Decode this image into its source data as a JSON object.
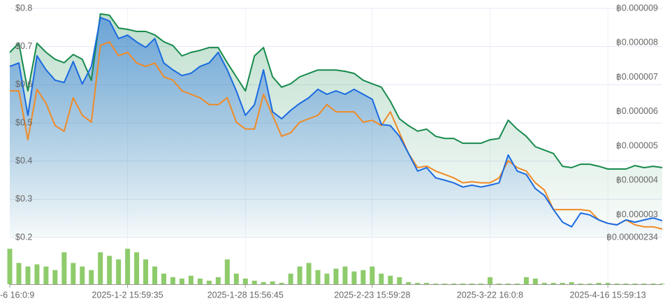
{
  "chart_data": {
    "type": "line",
    "categories": [
      "-6 16:0:9",
      null,
      null,
      null,
      null,
      null,
      null,
      null,
      null,
      null,
      null,
      null,
      null,
      "2025-1-2 15:59:35",
      null,
      null,
      null,
      null,
      null,
      null,
      null,
      null,
      null,
      null,
      null,
      null,
      "2025-1-28 15:56:45",
      null,
      null,
      null,
      null,
      null,
      null,
      null,
      null,
      null,
      null,
      null,
      null,
      null,
      "2025-2-23 15:59:28",
      null,
      null,
      null,
      null,
      null,
      null,
      null,
      null,
      null,
      null,
      null,
      null,
      "2025-3-22 16:0:8",
      null,
      null,
      null,
      null,
      null,
      null,
      null,
      null,
      null,
      null,
      null,
      null,
      "2025-4-16 15:59:13",
      null,
      null,
      null,
      null,
      null,
      null
    ],
    "series": [
      {
        "color": "#178a4c",
        "axis": "y2",
        "area": true,
        "values": [
          7.72e-06,
          7.99e-06,
          6.6e-06,
          7.99e-06,
          7.72e-06,
          7.52e-06,
          7.42e-06,
          7.66e-06,
          7.52e-06,
          6.91e-06,
          8.84e-06,
          8.8e-06,
          8.43e-06,
          8.39e-06,
          8.33e-06,
          8.33e-06,
          8.23e-06,
          8.03e-06,
          7.92e-06,
          7.62e-06,
          7.72e-06,
          7.78e-06,
          7.86e-06,
          7.86e-06,
          7.42e-06,
          7.01e-06,
          6.6e-06,
          7.62e-06,
          7.86e-06,
          7.01e-06,
          6.71e-06,
          6.81e-06,
          7.01e-06,
          7.11e-06,
          7.21e-06,
          7.21e-06,
          7.21e-06,
          7.17e-06,
          7.11e-06,
          6.91e-06,
          6.81e-06,
          6.71e-06,
          6.3e-06,
          5.79e-06,
          5.59e-06,
          5.43e-06,
          5.49e-06,
          5.28e-06,
          5.22e-06,
          5.22e-06,
          5.08e-06,
          5.08e-06,
          5.08e-06,
          5.18e-06,
          5.22e-06,
          5.75e-06,
          5.49e-06,
          5.28e-06,
          4.98e-06,
          4.88e-06,
          4.78e-06,
          4.41e-06,
          4.37e-06,
          4.47e-06,
          4.47e-06,
          4.41e-06,
          4.33e-06,
          4.33e-06,
          4.33e-06,
          4.43e-06,
          4.37e-06,
          4.41e-06,
          4.37e-06
        ]
      },
      {
        "color": "#f08a26",
        "values": [
          0.584,
          0.584,
          0.456,
          0.588,
          0.551,
          0.493,
          0.478,
          0.566,
          0.52,
          0.502,
          0.703,
          0.712,
          0.676,
          0.685,
          0.657,
          0.648,
          0.657,
          0.621,
          0.612,
          0.584,
          0.575,
          0.566,
          0.548,
          0.548,
          0.566,
          0.502,
          0.484,
          0.484,
          0.575,
          0.52,
          0.465,
          0.474,
          0.502,
          0.511,
          0.52,
          0.548,
          0.529,
          0.529,
          0.529,
          0.502,
          0.507,
          0.493,
          0.529,
          0.474,
          0.42,
          0.383,
          0.387,
          0.374,
          0.365,
          0.356,
          0.343,
          0.346,
          0.343,
          0.343,
          0.356,
          0.401,
          0.383,
          0.374,
          0.343,
          0.324,
          0.273,
          0.273,
          0.273,
          0.273,
          0.27,
          0.246,
          0.237,
          0.233,
          0.246,
          0.233,
          0.228,
          0.228,
          0.222
        ]
      },
      {
        "color": "#1a6ae0",
        "area": true,
        "values": [
          0.648,
          0.657,
          0.52,
          0.676,
          0.639,
          0.612,
          0.606,
          0.661,
          0.602,
          0.648,
          0.776,
          0.767,
          0.721,
          0.73,
          0.712,
          0.698,
          0.721,
          0.657,
          0.639,
          0.624,
          0.63,
          0.648,
          0.657,
          0.685,
          0.639,
          0.584,
          0.52,
          0.548,
          0.639,
          0.529,
          0.511,
          0.533,
          0.551,
          0.566,
          0.588,
          0.575,
          0.584,
          0.575,
          0.588,
          0.575,
          0.562,
          0.496,
          0.493,
          0.465,
          0.42,
          0.374,
          0.383,
          0.356,
          0.35,
          0.343,
          0.332,
          0.337,
          0.332,
          0.337,
          0.343,
          0.416,
          0.374,
          0.365,
          0.328,
          0.31,
          0.273,
          0.24,
          0.228,
          0.264,
          0.259,
          0.246,
          0.237,
          0.233,
          0.246,
          0.24,
          0.246,
          0.251,
          0.244
        ]
      }
    ],
    "ylim": [
      0.2,
      0.8
    ],
    "yticks": [
      {
        "value": 0.2,
        "label": "$0.2"
      },
      {
        "value": 0.3,
        "label": "$0.3"
      },
      {
        "value": 0.4,
        "label": "$0.4"
      },
      {
        "value": 0.5,
        "label": "$0.5"
      },
      {
        "value": 0.6,
        "label": "$0.6"
      },
      {
        "value": 0.7,
        "label": "$0.7"
      },
      {
        "value": 0.8,
        "label": "$0.8"
      }
    ],
    "y2lim": [
      2.34e-06,
      9e-06
    ],
    "y2ticks": [
      {
        "value": 2.34e-06,
        "label": "฿0.00000234"
      },
      {
        "value": 3e-06,
        "label": "฿0.000003"
      },
      {
        "value": 4e-06,
        "label": "฿0.000004"
      },
      {
        "value": 5e-06,
        "label": "฿0.000005"
      },
      {
        "value": 6e-06,
        "label": "฿0.000006"
      },
      {
        "value": 7e-06,
        "label": "฿0.000007"
      },
      {
        "value": 8e-06,
        "label": "฿0.000008"
      },
      {
        "value": 9e-06,
        "label": "฿0.000009"
      }
    ],
    "grid": true,
    "volume": {
      "type": "bar",
      "color": "#8ecb6b",
      "ylim": [
        0,
        60
      ],
      "values": [
        50,
        30,
        25,
        28,
        25,
        20,
        45,
        30,
        25,
        20,
        45,
        40,
        35,
        50,
        45,
        35,
        25,
        15,
        10,
        8,
        12,
        8,
        5,
        10,
        35,
        15,
        8,
        5,
        3,
        4,
        2,
        15,
        25,
        30,
        20,
        15,
        22,
        25,
        18,
        20,
        25,
        15,
        12,
        10,
        3,
        2,
        2,
        1,
        1,
        1,
        1,
        1,
        1,
        10,
        1,
        1,
        1,
        10,
        8,
        2,
        2,
        2,
        3,
        1,
        1,
        2,
        2,
        1,
        1,
        1,
        1,
        1,
        1
      ]
    }
  }
}
